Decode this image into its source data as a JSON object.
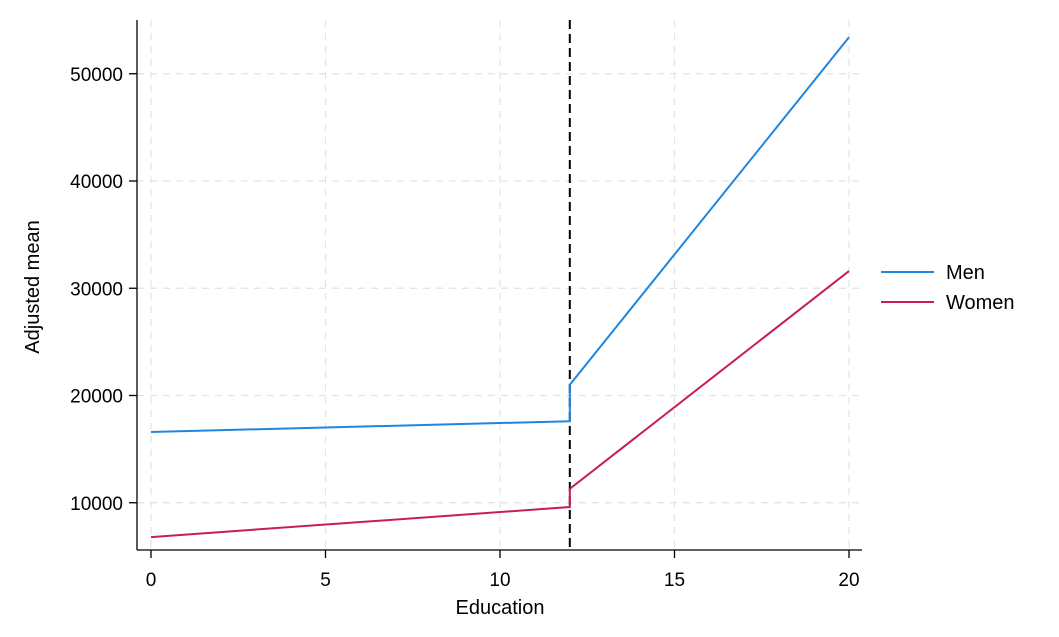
{
  "chart_data": {
    "type": "line",
    "title": "",
    "xlabel": "Education",
    "ylabel": "Adjusted mean",
    "xlim": [
      0,
      20
    ],
    "ylim": [
      5000,
      55000
    ],
    "x_ticks": [
      0,
      5,
      10,
      15,
      20
    ],
    "x_tick_labels": [
      "0",
      "5",
      "10",
      "15",
      "20"
    ],
    "y_ticks": [
      10000,
      20000,
      30000,
      40000,
      50000
    ],
    "y_tick_labels": [
      "10000",
      "20000",
      "30000",
      "40000",
      "50000"
    ],
    "grid": true,
    "legend_position": "right",
    "reference_line": {
      "x": 12,
      "style": "dashed",
      "color": "#000000"
    },
    "series": [
      {
        "name": "Men",
        "color": "#1f86e0",
        "points": [
          [
            0,
            16600
          ],
          [
            12,
            17600
          ],
          [
            12,
            21000
          ],
          [
            20,
            53400
          ]
        ]
      },
      {
        "name": "Women",
        "color": "#c81d55",
        "points": [
          [
            0,
            6800
          ],
          [
            12,
            9600
          ],
          [
            12,
            11300
          ],
          [
            20,
            31600
          ]
        ]
      }
    ]
  }
}
